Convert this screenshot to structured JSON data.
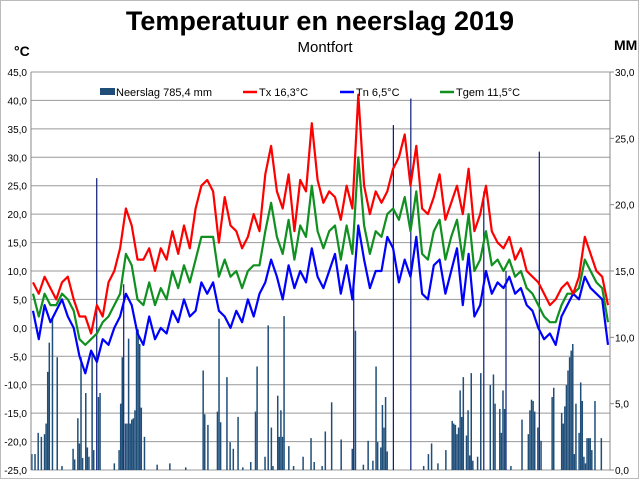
{
  "chart_data": {
    "type": "line+bar",
    "title": "Temperatuur en neerslag 2019",
    "subtitle": "Montfort",
    "ylabel_left": "°C",
    "ylabel_right": "MM",
    "ylim_left": [
      -25,
      45
    ],
    "ylim_right": [
      0,
      30
    ],
    "yticks_left": [
      "45,0",
      "40,0",
      "35,0",
      "30,0",
      "25,0",
      "20,0",
      "15,0",
      "10,0",
      "5,0",
      "0,0",
      "-5,0",
      "-10,0",
      "-15,0",
      "-20,0",
      "-25,0"
    ],
    "yticks_right": [
      "30,0",
      "25,0",
      "20,0",
      "15,0",
      "10,0",
      "5,0",
      "0,0"
    ],
    "grid": true,
    "legend_position": "top-center",
    "days": 365,
    "legend": [
      {
        "label": "Neerslag 785,4 mm",
        "color": "#1f4e79",
        "kind": "bar"
      },
      {
        "label": "Tx 16,3°C",
        "color": "#ff0000",
        "kind": "line"
      },
      {
        "label": "Tn 6,5°C",
        "color": "#0000ff",
        "kind": "line"
      },
      {
        "label": "Tgem 11,5°C",
        "color": "#109020",
        "kind": "line"
      }
    ],
    "series": [
      {
        "name": "Tx",
        "color": "#ff0000",
        "values": [
          8,
          6,
          9,
          7,
          5,
          8,
          9,
          5,
          2,
          2,
          -1,
          4,
          2,
          8,
          10,
          14,
          21,
          18,
          12,
          12,
          14,
          10,
          14,
          12,
          17,
          13,
          18,
          14,
          21,
          25,
          26,
          24,
          15,
          23,
          18,
          17,
          14,
          16,
          20,
          17,
          27,
          32,
          24,
          21,
          27,
          17,
          26,
          24,
          36,
          26,
          22,
          24,
          23,
          19,
          25,
          21,
          41,
          25,
          20,
          24,
          22,
          24,
          28,
          30,
          34,
          25,
          32,
          21,
          20,
          23,
          27,
          19,
          22,
          25,
          20,
          28,
          17,
          20,
          25,
          17,
          15,
          14,
          16,
          12,
          14,
          10,
          9,
          8,
          6,
          4,
          5,
          7,
          8,
          6,
          9,
          16,
          13,
          10,
          9,
          4
        ]
      },
      {
        "name": "Tn",
        "color": "#0000ff",
        "values": [
          3,
          -2,
          4,
          1,
          3,
          5,
          2,
          0,
          -5,
          -8,
          -4,
          -6,
          -2,
          -3,
          0,
          2,
          6,
          4,
          -1,
          -3,
          2,
          -2,
          0,
          -1,
          3,
          1,
          5,
          2,
          3,
          8,
          6,
          8,
          3,
          2,
          0,
          3,
          1,
          5,
          2,
          6,
          8,
          12,
          9,
          5,
          11,
          7,
          10,
          8,
          14,
          9,
          7,
          10,
          13,
          6,
          11,
          5,
          18,
          12,
          7,
          10,
          10,
          16,
          14,
          8,
          12,
          9,
          16,
          6,
          5,
          11,
          12,
          6,
          10,
          14,
          4,
          13,
          2,
          4,
          10,
          6,
          8,
          7,
          9,
          6,
          7,
          4,
          3,
          0,
          -2,
          -1,
          -3,
          2,
          4,
          6,
          5,
          9,
          7,
          6,
          5,
          -3
        ]
      },
      {
        "name": "Tgem",
        "color": "#109020",
        "values": [
          6,
          2,
          6,
          4,
          4,
          6,
          5,
          3,
          -2,
          -3,
          -2,
          -1,
          1,
          2,
          4,
          6,
          13,
          11,
          5,
          4,
          8,
          4,
          7,
          5,
          10,
          7,
          11,
          8,
          12,
          16,
          16,
          16,
          9,
          12,
          9,
          10,
          7,
          10,
          11,
          11,
          17,
          22,
          16,
          13,
          19,
          12,
          18,
          16,
          25,
          17,
          14,
          17,
          18,
          12,
          18,
          13,
          30,
          18,
          13,
          17,
          16,
          20,
          21,
          19,
          23,
          17,
          24,
          13,
          12,
          17,
          19,
          12,
          16,
          19,
          12,
          20,
          10,
          12,
          17,
          11,
          12,
          10,
          12,
          9,
          10,
          7,
          6,
          4,
          2,
          1,
          1,
          4,
          6,
          6,
          7,
          12,
          10,
          8,
          7,
          1
        ]
      }
    ],
    "precipitation": {
      "name": "Neerslag",
      "unit": "mm",
      "day_mm": [
        [
          1,
          1.2
        ],
        [
          3,
          1.2
        ],
        [
          5,
          2.8
        ],
        [
          7,
          2.5
        ],
        [
          9,
          2.7
        ],
        [
          10,
          3.5
        ],
        [
          11,
          7.4
        ],
        [
          12,
          9.6
        ],
        [
          14,
          11.5
        ],
        [
          17,
          8.5
        ],
        [
          20,
          0.3
        ],
        [
          27,
          1.6
        ],
        [
          28,
          0.8
        ],
        [
          30,
          3.9
        ],
        [
          31,
          2
        ],
        [
          32,
          8.5
        ],
        [
          33,
          0.9
        ],
        [
          35,
          5.8
        ],
        [
          36,
          1.7
        ],
        [
          37,
          1
        ],
        [
          39,
          8.9
        ],
        [
          40,
          1.5
        ],
        [
          42,
          22
        ],
        [
          43,
          5.5
        ],
        [
          44,
          5.8
        ],
        [
          53,
          0.5
        ],
        [
          56,
          1.5
        ],
        [
          57,
          5
        ],
        [
          58,
          8.5
        ],
        [
          59,
          14
        ],
        [
          60,
          3.5
        ],
        [
          61,
          3.5
        ],
        [
          62,
          9.9
        ],
        [
          63,
          3.5
        ],
        [
          64,
          3.8
        ],
        [
          65,
          3.9
        ],
        [
          66,
          4.5
        ],
        [
          67,
          10.4
        ],
        [
          68,
          10.6
        ],
        [
          69,
          9.5
        ],
        [
          70,
          4.7
        ],
        [
          72,
          2.5
        ],
        [
          80,
          0.4
        ],
        [
          88,
          0.5
        ],
        [
          98,
          0.2
        ],
        [
          109,
          7.5
        ],
        [
          110,
          4.2
        ],
        [
          112,
          3.4
        ],
        [
          118,
          4.4
        ],
        [
          119,
          11.4
        ],
        [
          120,
          3.6
        ],
        [
          124,
          7
        ],
        [
          126,
          2.1
        ],
        [
          128,
          1.6
        ],
        [
          131,
          4
        ],
        [
          134,
          0.2
        ],
        [
          139,
          0.6
        ],
        [
          142,
          4.4
        ],
        [
          143,
          7.8
        ],
        [
          148,
          1
        ],
        [
          150,
          10.9
        ],
        [
          152,
          3.2
        ],
        [
          153,
          0.3
        ],
        [
          156,
          5.6
        ],
        [
          157,
          2.5
        ],
        [
          158,
          4.5
        ],
        [
          159,
          2.5
        ],
        [
          160,
          11.6
        ],
        [
          163,
          1.8
        ],
        [
          166,
          0.3
        ],
        [
          172,
          1
        ],
        [
          177,
          2.4
        ],
        [
          179,
          0.6
        ],
        [
          184,
          0.3
        ],
        [
          186,
          2.9
        ],
        [
          190,
          5.1
        ],
        [
          196,
          2.3
        ],
        [
          203,
          1.6
        ],
        [
          204,
          14
        ],
        [
          205,
          10.5
        ],
        [
          210,
          0.4
        ],
        [
          213,
          2.2
        ],
        [
          216,
          0.7
        ],
        [
          218,
          7.8
        ],
        [
          219,
          2.1
        ],
        [
          221,
          1.7
        ],
        [
          222,
          4.9
        ],
        [
          223,
          3.2
        ],
        [
          224,
          5.5
        ],
        [
          225,
          1.4
        ],
        [
          229,
          26
        ],
        [
          240,
          28
        ],
        [
          248,
          0.3
        ],
        [
          251,
          1.2
        ],
        [
          253,
          2
        ],
        [
          257,
          0.5
        ],
        [
          262,
          1.5
        ],
        [
          266,
          3.7
        ],
        [
          267,
          3.5
        ],
        [
          268,
          3.4
        ],
        [
          269,
          2.7
        ],
        [
          270,
          3.2
        ],
        [
          271,
          6
        ],
        [
          272,
          4
        ],
        [
          273,
          7
        ],
        [
          275,
          2.6
        ],
        [
          276,
          4.5
        ],
        [
          277,
          1.1
        ],
        [
          278,
          7.3
        ],
        [
          279,
          0.7
        ],
        [
          282,
          1
        ],
        [
          284,
          7.3
        ],
        [
          286,
          21
        ],
        [
          290,
          6.4
        ],
        [
          292,
          7.2
        ],
        [
          293,
          5
        ],
        [
          296,
          4.6
        ],
        [
          297,
          2.8
        ],
        [
          298,
          6
        ],
        [
          299,
          4.6
        ],
        [
          300,
          15
        ],
        [
          303,
          0.3
        ],
        [
          310,
          3.8
        ],
        [
          314,
          2.7
        ],
        [
          315,
          4.5
        ],
        [
          316,
          5.3
        ],
        [
          317,
          5.2
        ],
        [
          318,
          4.4
        ],
        [
          320,
          3.2
        ],
        [
          321,
          24
        ],
        [
          322,
          2.2
        ],
        [
          329,
          5.5
        ],
        [
          330,
          6.2
        ],
        [
          335,
          4.3
        ],
        [
          336,
          3.5
        ],
        [
          337,
          4.8
        ],
        [
          338,
          6.4
        ],
        [
          339,
          7.5
        ],
        [
          340,
          8.5
        ],
        [
          341,
          9
        ],
        [
          342,
          9.5
        ],
        [
          343,
          1.2
        ],
        [
          344,
          5
        ],
        [
          346,
          2.8
        ],
        [
          347,
          6.6
        ],
        [
          348,
          5.2
        ],
        [
          349,
          1
        ],
        [
          350,
          0.5
        ],
        [
          351,
          2.4
        ],
        [
          352,
          2.4
        ],
        [
          353,
          2.4
        ],
        [
          354,
          1.5
        ],
        [
          356,
          5.2
        ],
        [
          360,
          2.4
        ]
      ]
    }
  }
}
